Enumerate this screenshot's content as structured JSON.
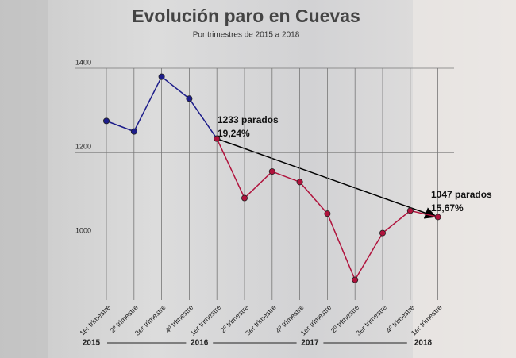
{
  "chart_data": {
    "type": "line",
    "title": "Evolución paro en Cuevas",
    "subtitle": "Por trimestres de 2015 a 2018",
    "categories": [
      "1er trimestre",
      "2º trimestre",
      "3er trimestre",
      "4º trimestre",
      "1er trimestre",
      "2º trimestre",
      "3er trimestre",
      "4º trimestre",
      "1er trimestre",
      "2º trimestre",
      "3er trimestre",
      "4º trimestre",
      "1er trimestre"
    ],
    "years": [
      "2015",
      "2016",
      "2017",
      "2018"
    ],
    "series": [
      {
        "color": "#1c1c8a",
        "values": [
          1275,
          1250,
          1380,
          1328,
          1233,
          null,
          null,
          null,
          null,
          null,
          null,
          null,
          null
        ]
      },
      {
        "color": "#b0123c",
        "values": [
          null,
          null,
          null,
          null,
          1233,
          1092,
          1155,
          1130,
          1055,
          898,
          1009,
          1062,
          1047
        ]
      }
    ],
    "annotations": [
      "1233 parados",
      "19,24%",
      "1047 parados",
      "15,67%"
    ],
    "ylim": [
      850,
      1400
    ],
    "yticks": [
      1000,
      1200,
      1400
    ],
    "grid": true
  }
}
